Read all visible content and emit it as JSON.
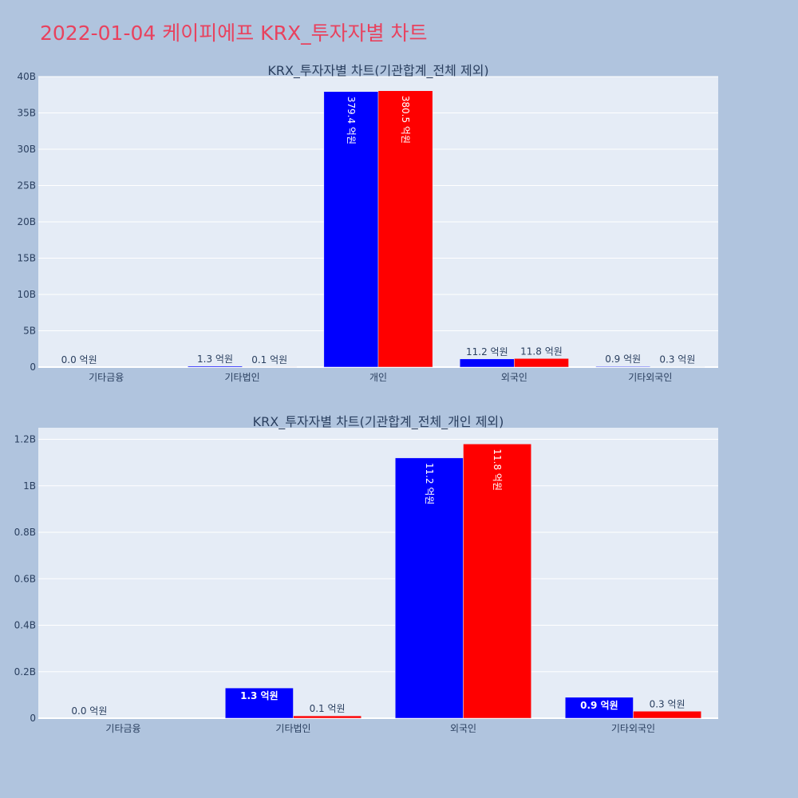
{
  "page": {
    "title": "2022-01-04 케이피에프 KRX_투자자별 차트"
  },
  "colors": {
    "background": "#b0c4de",
    "plot_bg": "#e5ecf6",
    "grid": "#ffffff",
    "title": "#e8425e",
    "text": "#2a3f5f",
    "series_buy": "#0000ff",
    "series_sell": "#ff0000"
  },
  "chart_data": [
    {
      "type": "bar",
      "title": "KRX_투자자별 차트(기관합계_전체 제외)",
      "categories": [
        "기타금융",
        "기타법인",
        "개인",
        "외국인",
        "기타외국인"
      ],
      "series": [
        {
          "color": "#0000ff",
          "values": [
            0,
            130000000,
            37940000000,
            1120000000,
            90000000
          ],
          "labels": [
            "0.0 억원",
            "1.3 억원",
            "379.4 억원",
            "11.2 억원",
            "0.9 억원"
          ]
        },
        {
          "color": "#ff0000",
          "values": [
            0,
            10000000,
            38050000000,
            1180000000,
            30000000
          ],
          "labels": [
            "",
            "0.1 억원",
            "380.5 억원",
            "11.8 억원",
            "0.3 억원"
          ]
        }
      ],
      "ylim": [
        0,
        40000000000
      ],
      "yticks": [
        0,
        5000000000,
        10000000000,
        15000000000,
        20000000000,
        25000000000,
        30000000000,
        35000000000,
        40000000000
      ],
      "yticklabels": [
        "0",
        "5B",
        "10B",
        "15B",
        "20B",
        "25B",
        "30B",
        "35B",
        "40B"
      ],
      "xlabel": "",
      "ylabel": "",
      "grid": true,
      "legend": false
    },
    {
      "type": "bar",
      "title": "KRX_투자자별 차트(기관합계_전체_개인 제외)",
      "categories": [
        "기타금융",
        "기타법인",
        "외국인",
        "기타외국인"
      ],
      "series": [
        {
          "color": "#0000ff",
          "values": [
            0,
            130000000,
            1120000000,
            90000000
          ],
          "labels": [
            "0.0 억원",
            "1.3 억원",
            "11.2 억원",
            "0.9 억원"
          ]
        },
        {
          "color": "#ff0000",
          "values": [
            0,
            10000000,
            1180000000,
            30000000
          ],
          "labels": [
            "",
            "0.1 억원",
            "11.8 억원",
            "0.3 억원"
          ]
        }
      ],
      "ylim": [
        0,
        1250000000
      ],
      "yticks": [
        0,
        200000000,
        400000000,
        600000000,
        800000000,
        1000000000,
        1200000000
      ],
      "yticklabels": [
        "0",
        "0.2B",
        "0.4B",
        "0.6B",
        "0.8B",
        "1B",
        "1.2B"
      ],
      "xlabel": "",
      "ylabel": "",
      "grid": true,
      "legend": false
    }
  ]
}
